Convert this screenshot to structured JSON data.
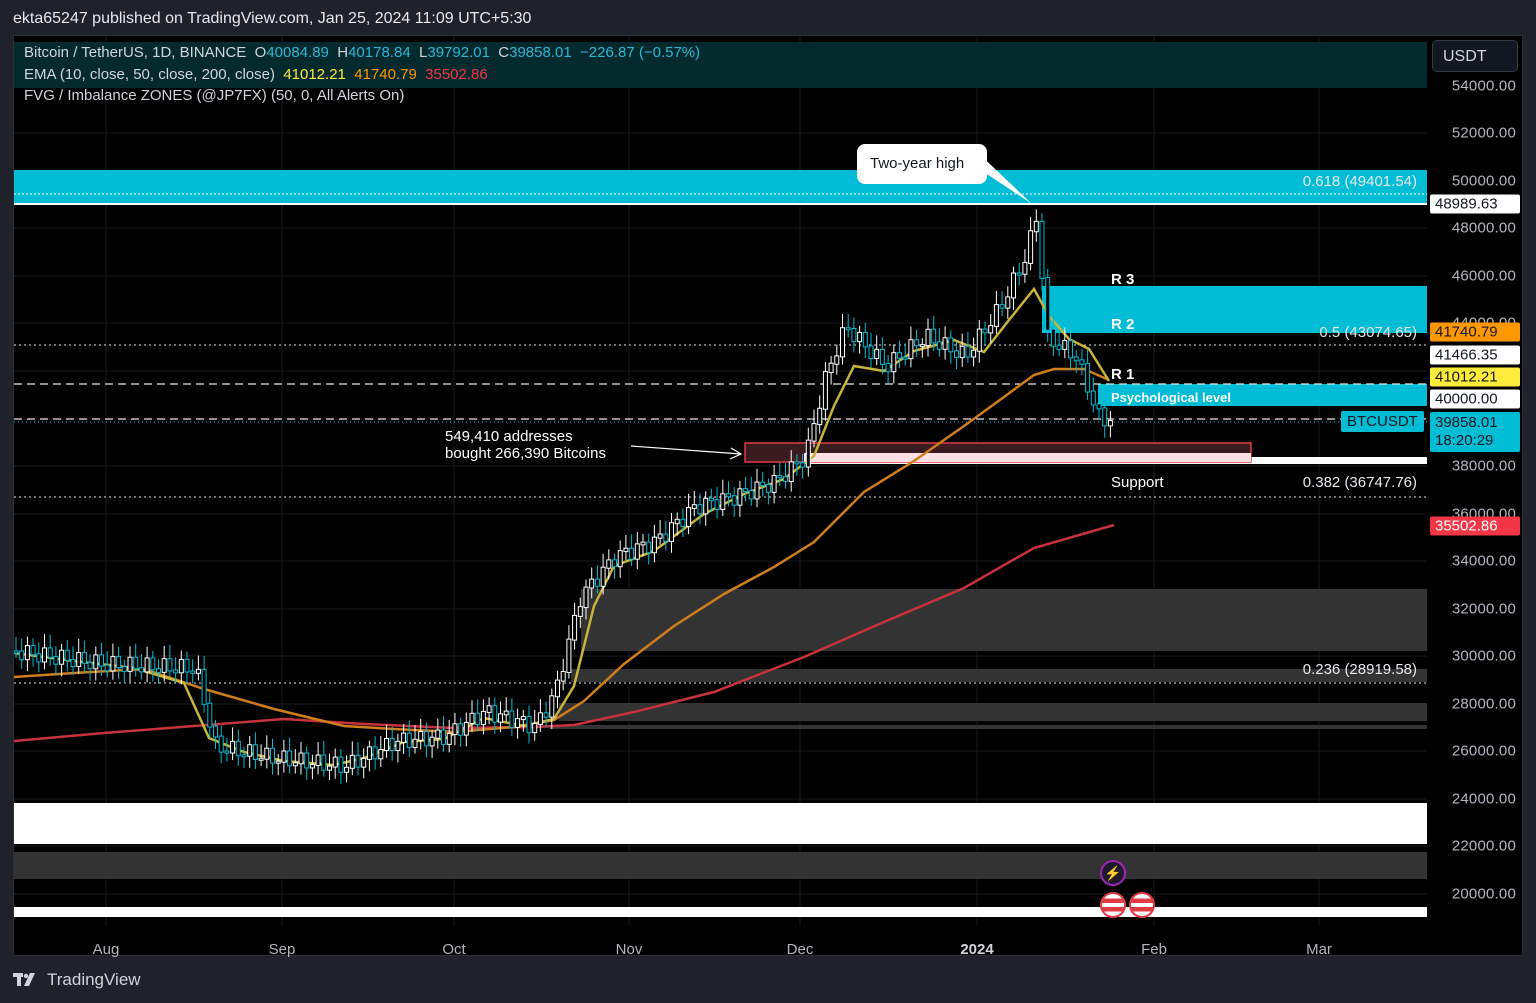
{
  "header": {
    "published": "ekta65247 published on TradingView.com, Jan 25, 2024 11:09 UTC+5:30"
  },
  "legend": {
    "symbol": "Bitcoin / TetherUS, 1D, BINANCE",
    "o_label": "O",
    "o": "40084.89",
    "h_label": "H",
    "h": "40178.84",
    "l_label": "L",
    "l": "39792.01",
    "c_label": "C",
    "c": "39858.01",
    "change": "−226.87 (−0.57%)",
    "ema_label": "EMA (10, close, 50, close, 200, close)",
    "ema10": "41012.21",
    "ema50": "41740.79",
    "ema200": "35502.86",
    "fvg_label": "FVG / Imbalance ZONES (@JP7FX) (50, 0, All Alerts On)"
  },
  "scale": {
    "currency": "USDT",
    "ticks": [
      "54000.00",
      "52000.00",
      "50000.00",
      "48000.00",
      "46000.00",
      "44000.00",
      "42000.00",
      "40000.00",
      "38000.00",
      "36000.00",
      "34000.00",
      "32000.00",
      "30000.00",
      "28000.00",
      "26000.00",
      "24000.00",
      "22000.00",
      "20000.00"
    ],
    "tags": {
      "high": "48989.63",
      "ema50": "41740.79",
      "level": "41466.35",
      "ema10": "41012.21",
      "psych": "40000.00",
      "last": "39858.01",
      "countdown": "18:20:29",
      "ema200": "35502.86"
    },
    "symbol_tag": "BTCUSDT"
  },
  "time_axis": [
    "Aug",
    "Sep",
    "Oct",
    "Nov",
    "Dec",
    "2024",
    "Feb",
    "Mar"
  ],
  "annotations": {
    "callout": "Two-year high",
    "fib_618": "0.618 (49401.54)",
    "fib_5": "0.5 (43074.65)",
    "fib_382": "0.382 (36747.76)",
    "fib_236": "0.236 (28919.58)",
    "r3": "R 3",
    "r2": "R 2",
    "r1": "R 1",
    "psych": "Psychological level",
    "support": "Support",
    "addresses_line1": "549,410 addresses",
    "addresses_line2": "bought 266,390 Bitcoins"
  },
  "colors": {
    "ema10": "#d4c040",
    "ema50": "#e08a1a",
    "ema200": "#e03a45",
    "up": "#ffffff",
    "down": "#00bcd4",
    "zone": "#00bcd4",
    "legend_cyan": "#29b6d8",
    "ema10_text": "#ffeb3b",
    "ema50_text": "#ff9800",
    "ema200_text": "#f23645"
  },
  "footer": {
    "brand": "TradingView"
  },
  "chart_data": {
    "type": "candlestick",
    "title": "Bitcoin / TetherUS, 1D, BINANCE",
    "xlabel": "",
    "ylabel": "USDT",
    "ylim": [
      19000,
      55000
    ],
    "x_ticks": [
      "Aug",
      "Sep",
      "Oct",
      "Nov",
      "Dec",
      "2024",
      "Feb",
      "Mar"
    ],
    "approx_close_by_month": {
      "late-Jul": 29300,
      "Aug-mid": 29200,
      "Aug-end": 26000,
      "Sep": 26300,
      "Oct-start": 27500,
      "Oct-mid": 28400,
      "Oct-end": 34500,
      "Nov": 36500,
      "Nov-end": 37800,
      "Dec-start": 42500,
      "Dec-mid": 42000,
      "Jan-2024-start": 45000,
      "Jan-11-high": 48989.63,
      "Jan-25-last": 39858.01
    },
    "series": [
      {
        "name": "EMA 10",
        "last": 41012.21
      },
      {
        "name": "EMA 50",
        "last": 41740.79
      },
      {
        "name": "EMA 200",
        "last": 35502.86
      }
    ],
    "ohlc_last": {
      "open": 40084.89,
      "high": 40178.84,
      "low": 39792.01,
      "close": 39858.01,
      "change": -226.87,
      "change_pct": -0.57
    },
    "fibonacci": [
      {
        "level": 0.618,
        "price": 49401.54
      },
      {
        "level": 0.5,
        "price": 43074.65
      },
      {
        "level": 0.382,
        "price": 36747.76
      },
      {
        "level": 0.236,
        "price": 28919.58
      }
    ],
    "horizontal_levels": {
      "two_year_high": 48989.63,
      "psychological": 40000.0,
      "level": 41466.35
    },
    "zones": [
      {
        "name": "R3-R2 resistance",
        "from": 43700,
        "to": 45700
      },
      {
        "name": "R1 / Psychological level",
        "from": 39900,
        "to": 41000
      },
      {
        "name": "Support (549,410 addresses bought 266,390 BTC)",
        "from": 38300,
        "to": 39000
      },
      {
        "name": "0.618 Fib zone",
        "from": 49000,
        "to": 50400
      }
    ],
    "annotations": [
      "Two-year high",
      "R 3",
      "R 2",
      "R 1",
      "Psychological level",
      "Support",
      "549,410 addresses bought 266,390 Bitcoins"
    ]
  }
}
